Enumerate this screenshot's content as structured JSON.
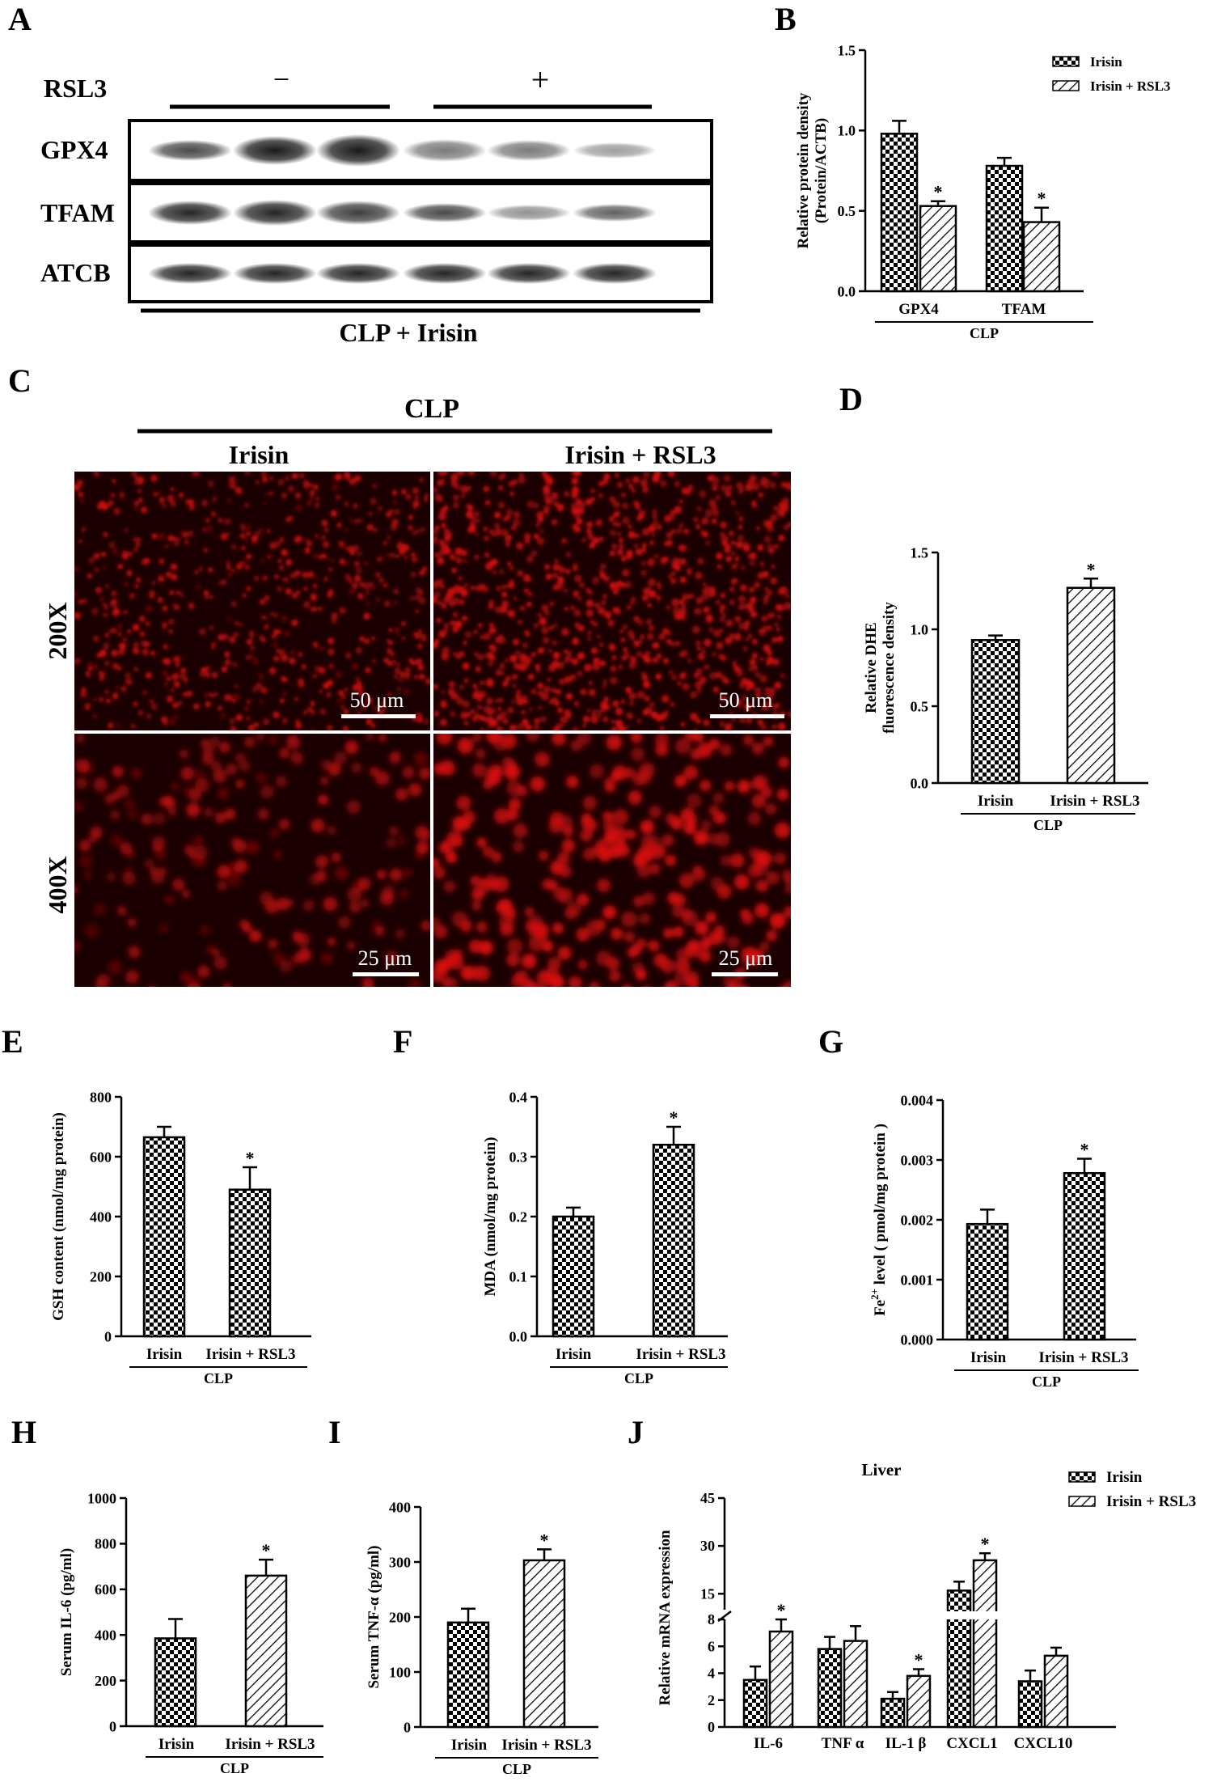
{
  "panel_labels": [
    "A",
    "B",
    "C",
    "D",
    "E",
    "F",
    "G",
    "H",
    "I",
    "J"
  ],
  "blot": {
    "treatment_label": "RSL3",
    "minus": "−",
    "plus": "+",
    "bands": [
      "GPX4",
      "TFAM",
      "ATCB"
    ],
    "footer": "CLP + Irisin"
  },
  "micro": {
    "group_label": "CLP",
    "columns": [
      "Irisin",
      "Irisin + RSL3"
    ],
    "rows": [
      "200X",
      "400X"
    ],
    "scale_200": "50 μm",
    "scale_400": "25 μm"
  },
  "colors": {
    "fluor": "#d81010",
    "bar_edge": "#000000"
  },
  "chart_data": [
    {
      "id": "B",
      "type": "bar",
      "categories": [
        "GPX4",
        "TFAM"
      ],
      "group_label": "CLP",
      "ylabel": "Relative protein density (Protein/ACTB)",
      "ylim": [
        0,
        1.5
      ],
      "yticks": [
        "0.0",
        "0.5",
        "1.0",
        "1.5"
      ],
      "series": [
        {
          "name": "Irisin",
          "pattern": "check",
          "values": [
            0.98,
            0.78
          ],
          "errors": [
            0.08,
            0.05
          ],
          "sig": [
            "",
            ""
          ]
        },
        {
          "name": "Irisin + RSL3",
          "pattern": "hatch",
          "values": [
            0.53,
            0.43
          ],
          "errors": [
            0.03,
            0.09
          ],
          "sig": [
            "*",
            "*"
          ]
        }
      ],
      "legend": "top-right"
    },
    {
      "id": "D",
      "type": "bar",
      "categories": [
        "Irisin",
        "Irisin + RSL3"
      ],
      "group_label": "CLP",
      "ylabel": "Relative DHE fluorescence density",
      "ylim": [
        0,
        1.5
      ],
      "yticks": [
        "0.0",
        "0.5",
        "1.0",
        "1.5"
      ],
      "values": [
        0.93,
        1.27
      ],
      "errors": [
        0.03,
        0.06
      ],
      "patterns": [
        "check",
        "hatch"
      ],
      "sig": [
        "",
        "*"
      ]
    },
    {
      "id": "E",
      "type": "bar",
      "categories": [
        "Irisin",
        "Irisin + RSL3"
      ],
      "group_label": "CLP",
      "ylabel": "GSH content (nmol/mg protein)",
      "ylim": [
        0,
        800
      ],
      "yticks": [
        "0",
        "200",
        "400",
        "600",
        "800"
      ],
      "values": [
        665,
        490
      ],
      "errors": [
        35,
        75
      ],
      "patterns": [
        "check",
        "check"
      ],
      "sig": [
        "",
        "*"
      ]
    },
    {
      "id": "F",
      "type": "bar",
      "categories": [
        "Irisin",
        "Irisin + RSL3"
      ],
      "group_label": "CLP",
      "ylabel": "MDA (nmol/mg protein)",
      "ylim": [
        0,
        0.4
      ],
      "yticks": [
        "0.0",
        "0.1",
        "0.2",
        "0.3",
        "0.4"
      ],
      "values": [
        0.2,
        0.32
      ],
      "errors": [
        0.015,
        0.03
      ],
      "patterns": [
        "check",
        "check"
      ],
      "sig": [
        "",
        "*"
      ]
    },
    {
      "id": "G",
      "type": "bar",
      "categories": [
        "Irisin",
        "Irisin + RSL3"
      ],
      "group_label": "CLP",
      "ylabel": "Fe2+ level ( pmol/mg protein )",
      "ylim": [
        0,
        0.004
      ],
      "yticks": [
        "0.000",
        "0.001",
        "0.002",
        "0.003",
        "0.004"
      ],
      "values": [
        0.00193,
        0.00278
      ],
      "errors": [
        0.00024,
        0.00024
      ],
      "patterns": [
        "check",
        "check"
      ],
      "sig": [
        "",
        "*"
      ]
    },
    {
      "id": "H",
      "type": "bar",
      "categories": [
        "Irisin",
        "Irisin + RSL3"
      ],
      "group_label": "CLP",
      "ylabel": "Serum IL-6 (pg/ml)",
      "ylim": [
        0,
        1000
      ],
      "yticks": [
        "0",
        "200",
        "400",
        "600",
        "800",
        "1000"
      ],
      "values": [
        385,
        660
      ],
      "errors": [
        85,
        70
      ],
      "patterns": [
        "check",
        "hatch"
      ],
      "sig": [
        "",
        "*"
      ]
    },
    {
      "id": "I",
      "type": "bar",
      "categories": [
        "Irisin",
        "Irisin + RSL3"
      ],
      "group_label": "CLP",
      "ylabel": "Serum TNF-α (pg/ml)",
      "ylim": [
        0,
        400
      ],
      "yticks": [
        "0",
        "100",
        "200",
        "300",
        "400"
      ],
      "values": [
        190,
        303
      ],
      "errors": [
        25,
        20
      ],
      "patterns": [
        "check",
        "hatch"
      ],
      "sig": [
        "",
        "*"
      ]
    },
    {
      "id": "J",
      "type": "bar",
      "title": "Liver",
      "categories": [
        "IL-6",
        "TNF α",
        "IL-1 β",
        "CXCL1",
        "CXCL10"
      ],
      "ylabel": "Relative mRNA expression",
      "ylim": [
        0,
        45
      ],
      "axis_break": [
        8,
        10
      ],
      "yticks": [
        "0",
        "2",
        "4",
        "6",
        "8",
        "15",
        "30",
        "45"
      ],
      "series": [
        {
          "name": "Irisin",
          "pattern": "check",
          "values": [
            3.5,
            5.8,
            2.1,
            16,
            3.4
          ],
          "errors": [
            1.0,
            0.9,
            0.5,
            2.8,
            0.8
          ],
          "sig": [
            "",
            "",
            "",
            "",
            ""
          ]
        },
        {
          "name": "Irisin + RSL3",
          "pattern": "hatch",
          "values": [
            7.1,
            6.4,
            3.8,
            25.5,
            5.3
          ],
          "errors": [
            0.9,
            1.1,
            0.5,
            2.2,
            0.6
          ],
          "sig": [
            "*",
            "",
            "*",
            "*",
            ""
          ]
        }
      ],
      "legend": "top-right"
    }
  ]
}
